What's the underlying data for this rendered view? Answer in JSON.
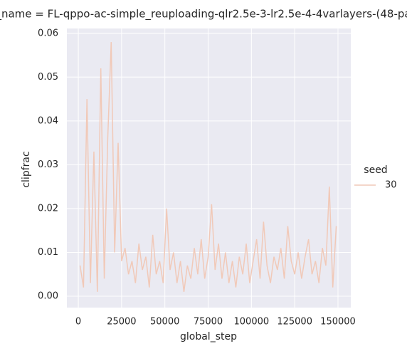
{
  "chart_data": {
    "type": "line",
    "title": "_name = FL-qppo-ac-simple_reuploading-qlr2.5e-3-lr2.5e-4-4varlayers-(48-pa",
    "x_label": "global_step",
    "y_label": "clipfrac",
    "legend_title": "seed",
    "x": [
      1000,
      3000,
      5000,
      7000,
      9000,
      11000,
      13000,
      15000,
      17000,
      19000,
      21000,
      23000,
      25000,
      27000,
      29000,
      31000,
      33000,
      35000,
      37000,
      39000,
      41000,
      43000,
      45000,
      47000,
      49000,
      51000,
      53000,
      55000,
      57000,
      59000,
      61000,
      63000,
      65000,
      67000,
      69000,
      71000,
      73000,
      75000,
      77000,
      79000,
      81000,
      83000,
      85000,
      87000,
      89000,
      91000,
      93000,
      95000,
      97000,
      99000,
      101000,
      103000,
      105000,
      107000,
      109000,
      111000,
      113000,
      115000,
      117000,
      119000,
      121000,
      123000,
      125000,
      127000,
      129000,
      131000,
      133000,
      135000,
      137000,
      139000,
      141000,
      143000,
      145000,
      147000,
      149000
    ],
    "series": [
      {
        "name": "30",
        "color": "#f1c9b8",
        "values": [
          0.007,
          0.002,
          0.045,
          0.003,
          0.033,
          0.001,
          0.052,
          0.004,
          0.036,
          0.058,
          0.01,
          0.035,
          0.008,
          0.011,
          0.005,
          0.008,
          0.003,
          0.012,
          0.006,
          0.009,
          0.002,
          0.014,
          0.005,
          0.008,
          0.003,
          0.02,
          0.006,
          0.01,
          0.003,
          0.008,
          0.001,
          0.007,
          0.004,
          0.011,
          0.005,
          0.013,
          0.004,
          0.009,
          0.021,
          0.006,
          0.012,
          0.004,
          0.01,
          0.003,
          0.008,
          0.002,
          0.009,
          0.005,
          0.012,
          0.003,
          0.008,
          0.013,
          0.004,
          0.017,
          0.007,
          0.003,
          0.009,
          0.006,
          0.011,
          0.004,
          0.016,
          0.008,
          0.005,
          0.01,
          0.004,
          0.009,
          0.013,
          0.005,
          0.008,
          0.003,
          0.011,
          0.007,
          0.025,
          0.002,
          0.016
        ]
      }
    ],
    "xlim": [
      -6600,
      157400
    ],
    "xticks": [
      0,
      25000,
      50000,
      75000,
      100000,
      125000,
      150000
    ],
    "ylim": [
      -0.0026,
      0.0611
    ],
    "yticks": [
      {
        "value": 0,
        "label": "0.00"
      },
      {
        "value": 0.01,
        "label": "0.01"
      },
      {
        "value": 0.02,
        "label": "0.02"
      },
      {
        "value": 0.03,
        "label": "0.03"
      },
      {
        "value": 0.04,
        "label": "0.04"
      },
      {
        "value": 0.05,
        "label": "0.05"
      },
      {
        "value": 0.06,
        "label": "0.06"
      }
    ],
    "grid": true,
    "legend": "right"
  }
}
